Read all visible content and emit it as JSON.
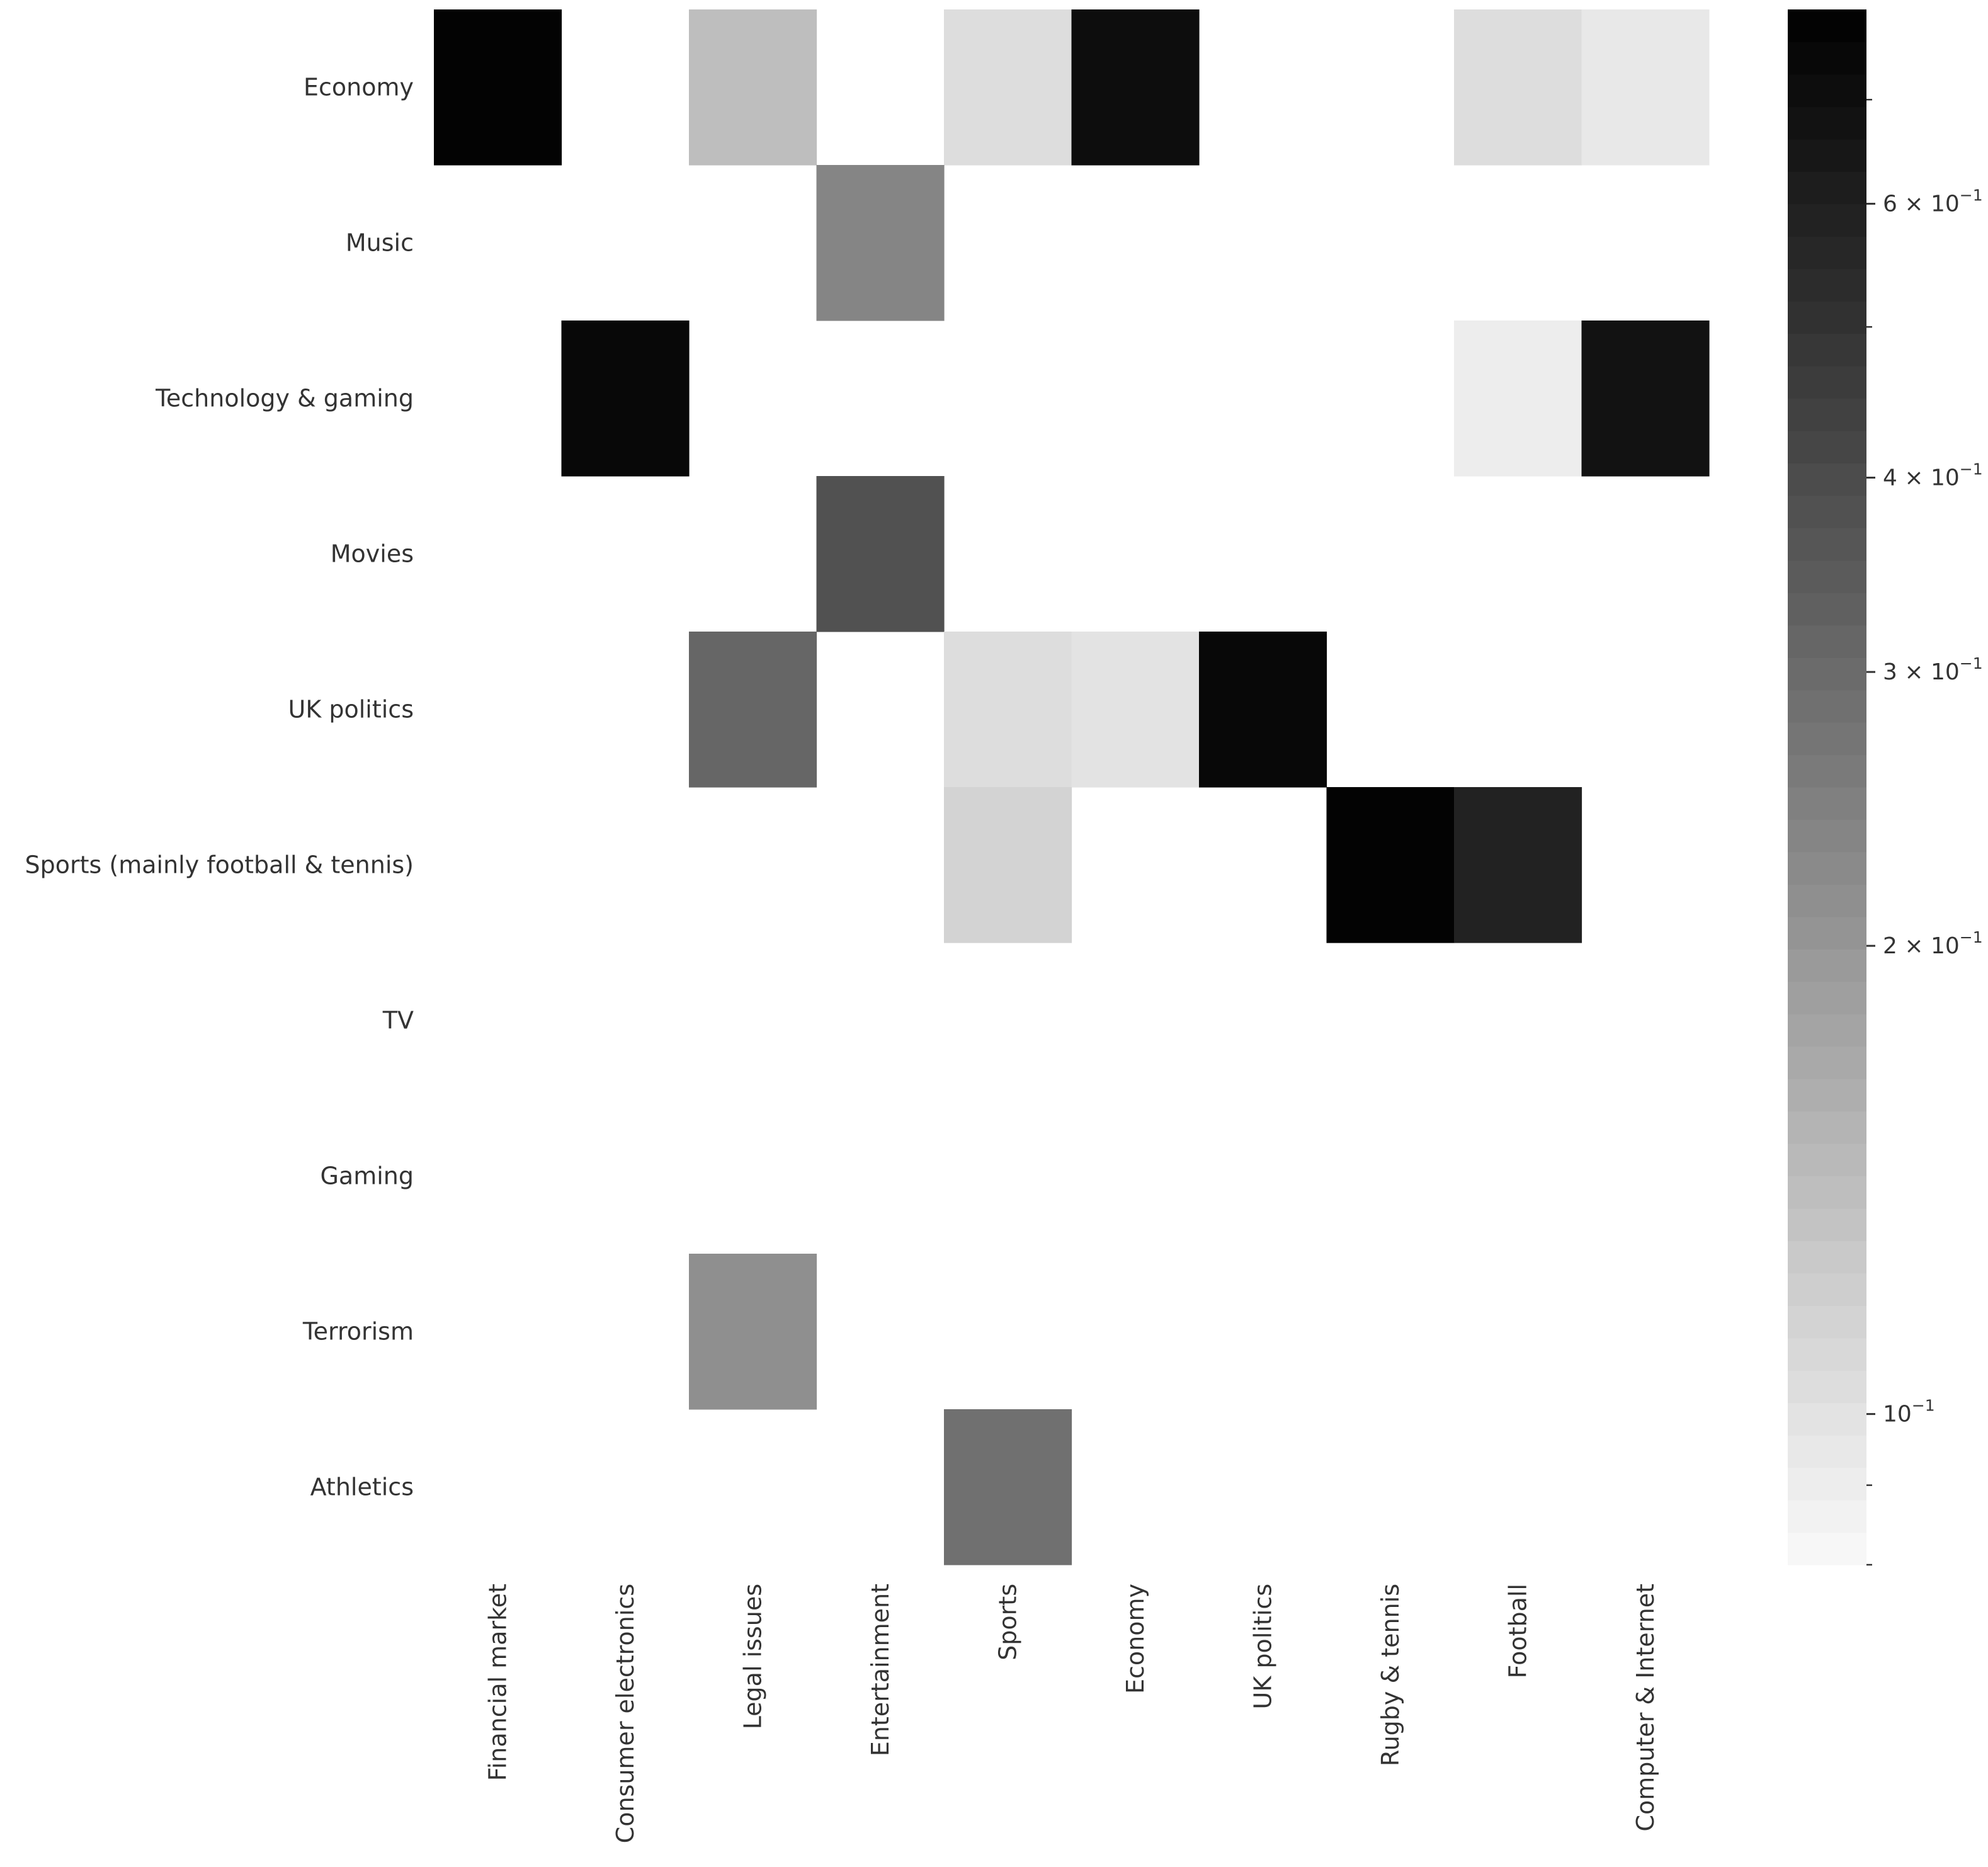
{
  "chart_data": {
    "type": "heatmap",
    "title": "",
    "xlabel": "",
    "ylabel": "",
    "rows": [
      "Economy",
      "Music",
      "Technology & gaming",
      "Movies",
      "UK politics",
      "Sports (mainly football & tennis)",
      "TV",
      "Gaming",
      "Terrorism",
      "Athletics"
    ],
    "columns": [
      "Financial market",
      "Consumer electronics",
      "Legal issues",
      "Entertainment",
      "Sports",
      "Economy",
      "UK politics",
      "Rugby & tennis",
      "Football",
      "Computer & Internet"
    ],
    "values": [
      [
        0.78,
        null,
        0.14,
        null,
        0.105,
        0.7,
        null,
        null,
        0.105,
        0.095
      ],
      [
        null,
        null,
        null,
        0.24,
        null,
        null,
        null,
        null,
        null,
        null
      ],
      [
        null,
        0.73,
        null,
        null,
        null,
        null,
        null,
        null,
        0.09,
        0.68
      ],
      [
        null,
        null,
        null,
        0.38,
        null,
        null,
        null,
        null,
        null,
        null
      ],
      [
        null,
        null,
        0.31,
        null,
        0.105,
        0.1,
        0.76,
        null,
        null,
        null
      ],
      [
        null,
        null,
        null,
        null,
        0.115,
        null,
        null,
        0.8,
        0.58,
        null
      ],
      [
        null,
        null,
        null,
        null,
        null,
        null,
        null,
        null,
        null,
        null
      ],
      [
        null,
        null,
        null,
        null,
        null,
        null,
        null,
        null,
        null,
        null
      ],
      [
        null,
        null,
        0.21,
        null,
        null,
        null,
        null,
        null,
        null,
        null
      ],
      [
        null,
        null,
        null,
        null,
        0.28,
        null,
        null,
        null,
        null,
        null
      ]
    ],
    "color_scale": "log",
    "colormap": [
      "#ffffff",
      "#000000"
    ],
    "vmin": 0.08,
    "vmax": 0.8,
    "colorbar": {
      "ticks": [
        {
          "value": 0.1,
          "base": "10",
          "exp": "−1"
        },
        {
          "value": 0.2,
          "base": "2 × 10",
          "exp": "−1"
        },
        {
          "value": 0.3,
          "base": "3 × 10",
          "exp": "−1"
        },
        {
          "value": 0.4,
          "base": "4 × 10",
          "exp": "−1"
        },
        {
          "value": 0.6,
          "base": "6 × 10",
          "exp": "−1"
        }
      ],
      "minor_ticks": [
        0.08,
        0.09,
        0.5,
        0.7
      ],
      "levels": 48
    },
    "grid": false,
    "legend": "colorbar-right"
  }
}
